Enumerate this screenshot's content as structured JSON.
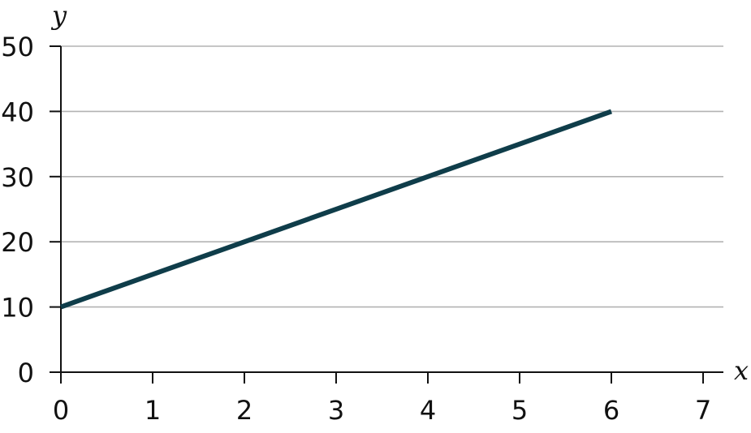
{
  "chart_data": {
    "type": "line",
    "title": "",
    "xlabel": "x",
    "ylabel": "y",
    "xlim": [
      0,
      7
    ],
    "ylim": [
      0,
      50
    ],
    "x_ticks": [
      0,
      1,
      2,
      3,
      4,
      5,
      6,
      7
    ],
    "y_ticks": [
      0,
      10,
      20,
      30,
      40,
      50
    ],
    "grid": "horizontal",
    "series": [
      {
        "x": [
          0,
          6
        ],
        "y": [
          10,
          40
        ],
        "color": "#0f3d4a"
      }
    ]
  }
}
